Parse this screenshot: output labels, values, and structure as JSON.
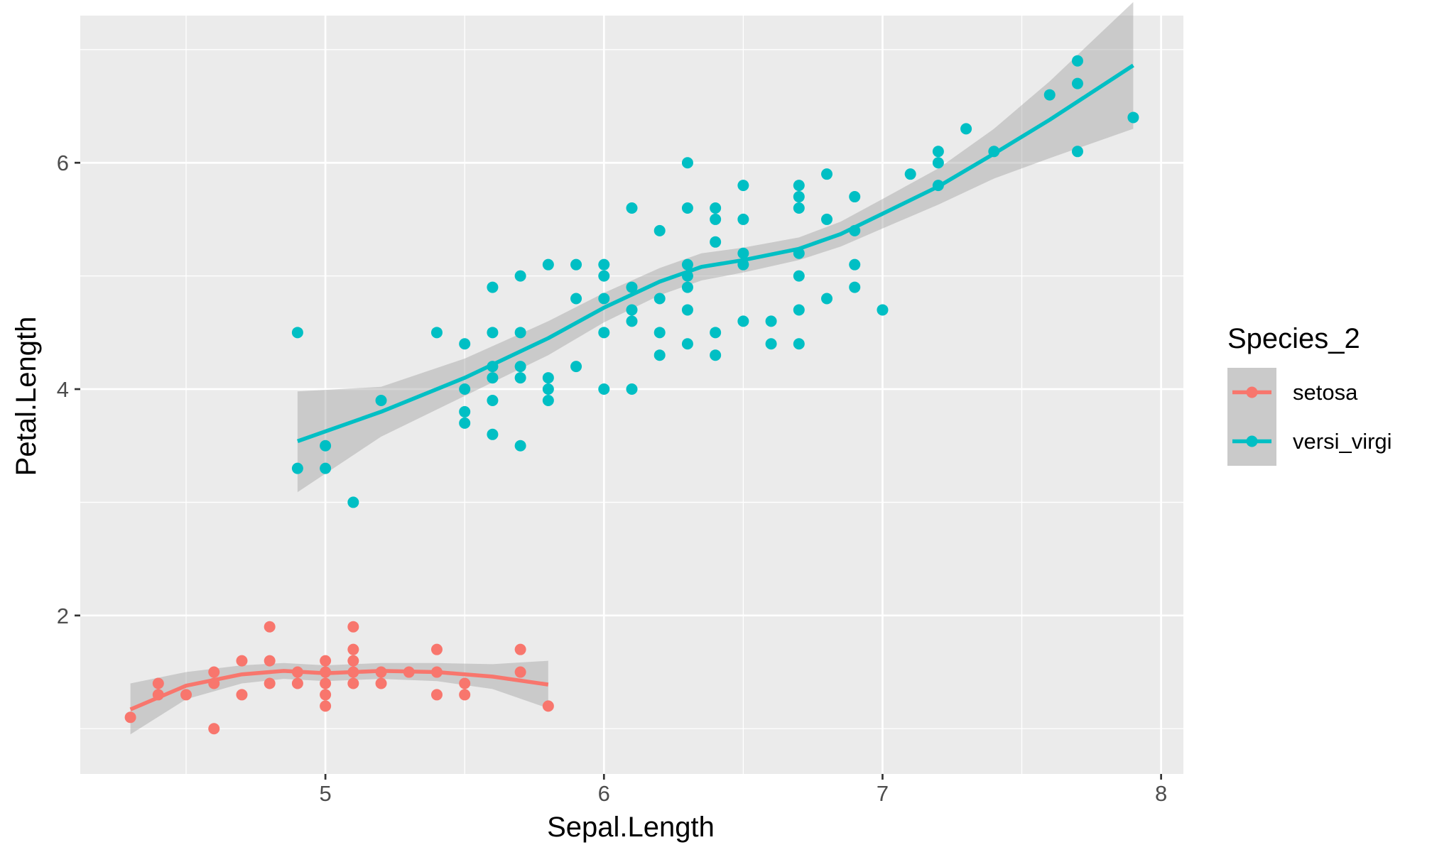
{
  "chart_data": {
    "type": "scatter",
    "xlabel": "Sepal.Length",
    "ylabel": "Petal.Length",
    "xlim": [
      4.12,
      8.08
    ],
    "ylim": [
      0.6,
      7.3
    ],
    "x_ticks": [
      5,
      6,
      7,
      8
    ],
    "x_minor": [
      4.5,
      5.5,
      6.5,
      7.5
    ],
    "y_ticks": [
      2,
      4,
      6
    ],
    "y_minor": [
      1,
      3,
      5,
      7
    ],
    "grid": true,
    "legend": {
      "title": "Species_2",
      "position": "right",
      "entries": [
        "setosa",
        "versi_virgi"
      ]
    },
    "series": [
      {
        "name": "setosa",
        "color": "#F8766D",
        "points": [
          [
            4.3,
            1.1
          ],
          [
            4.4,
            1.4
          ],
          [
            4.4,
            1.3
          ],
          [
            4.5,
            1.3
          ],
          [
            4.6,
            1.0
          ],
          [
            4.6,
            1.4
          ],
          [
            4.6,
            1.5
          ],
          [
            4.7,
            1.3
          ],
          [
            4.7,
            1.6
          ],
          [
            4.8,
            1.4
          ],
          [
            4.8,
            1.6
          ],
          [
            4.8,
            1.9
          ],
          [
            4.9,
            1.4
          ],
          [
            4.9,
            1.5
          ],
          [
            5.0,
            1.2
          ],
          [
            5.0,
            1.3
          ],
          [
            5.0,
            1.4
          ],
          [
            5.0,
            1.5
          ],
          [
            5.0,
            1.6
          ],
          [
            5.1,
            1.4
          ],
          [
            5.1,
            1.5
          ],
          [
            5.1,
            1.6
          ],
          [
            5.1,
            1.7
          ],
          [
            5.1,
            1.9
          ],
          [
            5.2,
            1.4
          ],
          [
            5.2,
            1.5
          ],
          [
            5.3,
            1.5
          ],
          [
            5.4,
            1.3
          ],
          [
            5.4,
            1.5
          ],
          [
            5.4,
            1.7
          ],
          [
            5.5,
            1.3
          ],
          [
            5.5,
            1.4
          ],
          [
            5.7,
            1.5
          ],
          [
            5.7,
            1.7
          ],
          [
            5.8,
            1.2
          ]
        ],
        "smooth": [
          [
            4.3,
            1.17
          ],
          [
            4.5,
            1.38
          ],
          [
            4.7,
            1.48
          ],
          [
            4.85,
            1.51
          ],
          [
            5.0,
            1.49
          ],
          [
            5.2,
            1.51
          ],
          [
            5.4,
            1.5
          ],
          [
            5.6,
            1.46
          ],
          [
            5.8,
            1.39
          ]
        ],
        "band_upper": [
          [
            4.3,
            1.4
          ],
          [
            4.5,
            1.5
          ],
          [
            4.7,
            1.56
          ],
          [
            4.85,
            1.58
          ],
          [
            5.0,
            1.56
          ],
          [
            5.2,
            1.58
          ],
          [
            5.4,
            1.58
          ],
          [
            5.6,
            1.57
          ],
          [
            5.8,
            1.6
          ]
        ],
        "band_lower": [
          [
            4.3,
            0.95
          ],
          [
            4.5,
            1.26
          ],
          [
            4.7,
            1.4
          ],
          [
            4.85,
            1.44
          ],
          [
            5.0,
            1.42
          ],
          [
            5.2,
            1.44
          ],
          [
            5.4,
            1.42
          ],
          [
            5.6,
            1.35
          ],
          [
            5.8,
            1.18
          ]
        ]
      },
      {
        "name": "versi_virgi",
        "color": "#00BFC4",
        "points": [
          [
            4.9,
            3.3
          ],
          [
            4.9,
            4.5
          ],
          [
            5.0,
            3.3
          ],
          [
            5.0,
            3.5
          ],
          [
            5.1,
            3.0
          ],
          [
            5.2,
            3.9
          ],
          [
            5.4,
            4.5
          ],
          [
            5.5,
            3.7
          ],
          [
            5.5,
            3.8
          ],
          [
            5.5,
            4.0
          ],
          [
            5.5,
            4.4
          ],
          [
            5.6,
            3.6
          ],
          [
            5.6,
            3.9
          ],
          [
            5.6,
            4.1
          ],
          [
            5.6,
            4.2
          ],
          [
            5.6,
            4.5
          ],
          [
            5.6,
            4.9
          ],
          [
            5.7,
            3.5
          ],
          [
            5.7,
            4.1
          ],
          [
            5.7,
            4.2
          ],
          [
            5.7,
            4.5
          ],
          [
            5.7,
            5.0
          ],
          [
            5.8,
            3.9
          ],
          [
            5.8,
            4.0
          ],
          [
            5.8,
            4.1
          ],
          [
            5.8,
            5.1
          ],
          [
            5.9,
            4.2
          ],
          [
            5.9,
            4.8
          ],
          [
            5.9,
            5.1
          ],
          [
            6.0,
            4.0
          ],
          [
            6.0,
            4.5
          ],
          [
            6.0,
            4.8
          ],
          [
            6.0,
            5.0
          ],
          [
            6.0,
            5.1
          ],
          [
            6.1,
            4.0
          ],
          [
            6.1,
            4.6
          ],
          [
            6.1,
            4.7
          ],
          [
            6.1,
            4.9
          ],
          [
            6.1,
            5.6
          ],
          [
            6.2,
            4.3
          ],
          [
            6.2,
            4.5
          ],
          [
            6.2,
            4.8
          ],
          [
            6.2,
            5.4
          ],
          [
            6.3,
            4.4
          ],
          [
            6.3,
            4.7
          ],
          [
            6.3,
            4.9
          ],
          [
            6.3,
            5.0
          ],
          [
            6.3,
            5.1
          ],
          [
            6.3,
            5.6
          ],
          [
            6.3,
            6.0
          ],
          [
            6.4,
            4.3
          ],
          [
            6.4,
            4.5
          ],
          [
            6.4,
            5.3
          ],
          [
            6.4,
            5.5
          ],
          [
            6.4,
            5.6
          ],
          [
            6.5,
            4.6
          ],
          [
            6.5,
            5.1
          ],
          [
            6.5,
            5.2
          ],
          [
            6.5,
            5.5
          ],
          [
            6.5,
            5.8
          ],
          [
            6.6,
            4.4
          ],
          [
            6.6,
            4.6
          ],
          [
            6.7,
            4.4
          ],
          [
            6.7,
            4.7
          ],
          [
            6.7,
            5.0
          ],
          [
            6.7,
            5.2
          ],
          [
            6.7,
            5.6
          ],
          [
            6.7,
            5.7
          ],
          [
            6.7,
            5.8
          ],
          [
            6.8,
            4.8
          ],
          [
            6.8,
            5.5
          ],
          [
            6.8,
            5.9
          ],
          [
            6.9,
            4.9
          ],
          [
            6.9,
            5.1
          ],
          [
            6.9,
            5.4
          ],
          [
            6.9,
            5.7
          ],
          [
            7.0,
            4.7
          ],
          [
            7.1,
            5.9
          ],
          [
            7.2,
            5.8
          ],
          [
            7.2,
            6.0
          ],
          [
            7.2,
            6.1
          ],
          [
            7.3,
            6.3
          ],
          [
            7.4,
            6.1
          ],
          [
            7.6,
            6.6
          ],
          [
            7.7,
            6.1
          ],
          [
            7.7,
            6.7
          ],
          [
            7.7,
            6.9
          ],
          [
            7.9,
            6.4
          ]
        ],
        "smooth": [
          [
            4.9,
            3.54
          ],
          [
            5.2,
            3.8
          ],
          [
            5.5,
            4.1
          ],
          [
            5.8,
            4.45
          ],
          [
            6.0,
            4.72
          ],
          [
            6.2,
            4.95
          ],
          [
            6.35,
            5.08
          ],
          [
            6.5,
            5.14
          ],
          [
            6.7,
            5.24
          ],
          [
            6.85,
            5.37
          ],
          [
            7.0,
            5.55
          ],
          [
            7.2,
            5.79
          ],
          [
            7.4,
            6.08
          ],
          [
            7.6,
            6.38
          ],
          [
            7.9,
            6.86
          ]
        ],
        "band_upper": [
          [
            4.9,
            3.98
          ],
          [
            5.2,
            4.02
          ],
          [
            5.5,
            4.27
          ],
          [
            5.8,
            4.6
          ],
          [
            6.0,
            4.85
          ],
          [
            6.2,
            5.07
          ],
          [
            6.35,
            5.2
          ],
          [
            6.5,
            5.25
          ],
          [
            6.7,
            5.34
          ],
          [
            6.85,
            5.48
          ],
          [
            7.0,
            5.68
          ],
          [
            7.2,
            5.95
          ],
          [
            7.4,
            6.3
          ],
          [
            7.6,
            6.72
          ],
          [
            7.9,
            7.42
          ]
        ],
        "band_lower": [
          [
            4.9,
            3.09
          ],
          [
            5.2,
            3.58
          ],
          [
            5.5,
            3.94
          ],
          [
            5.8,
            4.3
          ],
          [
            6.0,
            4.59
          ],
          [
            6.2,
            4.83
          ],
          [
            6.35,
            4.96
          ],
          [
            6.5,
            5.03
          ],
          [
            6.7,
            5.14
          ],
          [
            6.85,
            5.26
          ],
          [
            7.0,
            5.42
          ],
          [
            7.2,
            5.63
          ],
          [
            7.4,
            5.86
          ],
          [
            7.6,
            6.04
          ],
          [
            7.9,
            6.3
          ]
        ]
      }
    ]
  }
}
